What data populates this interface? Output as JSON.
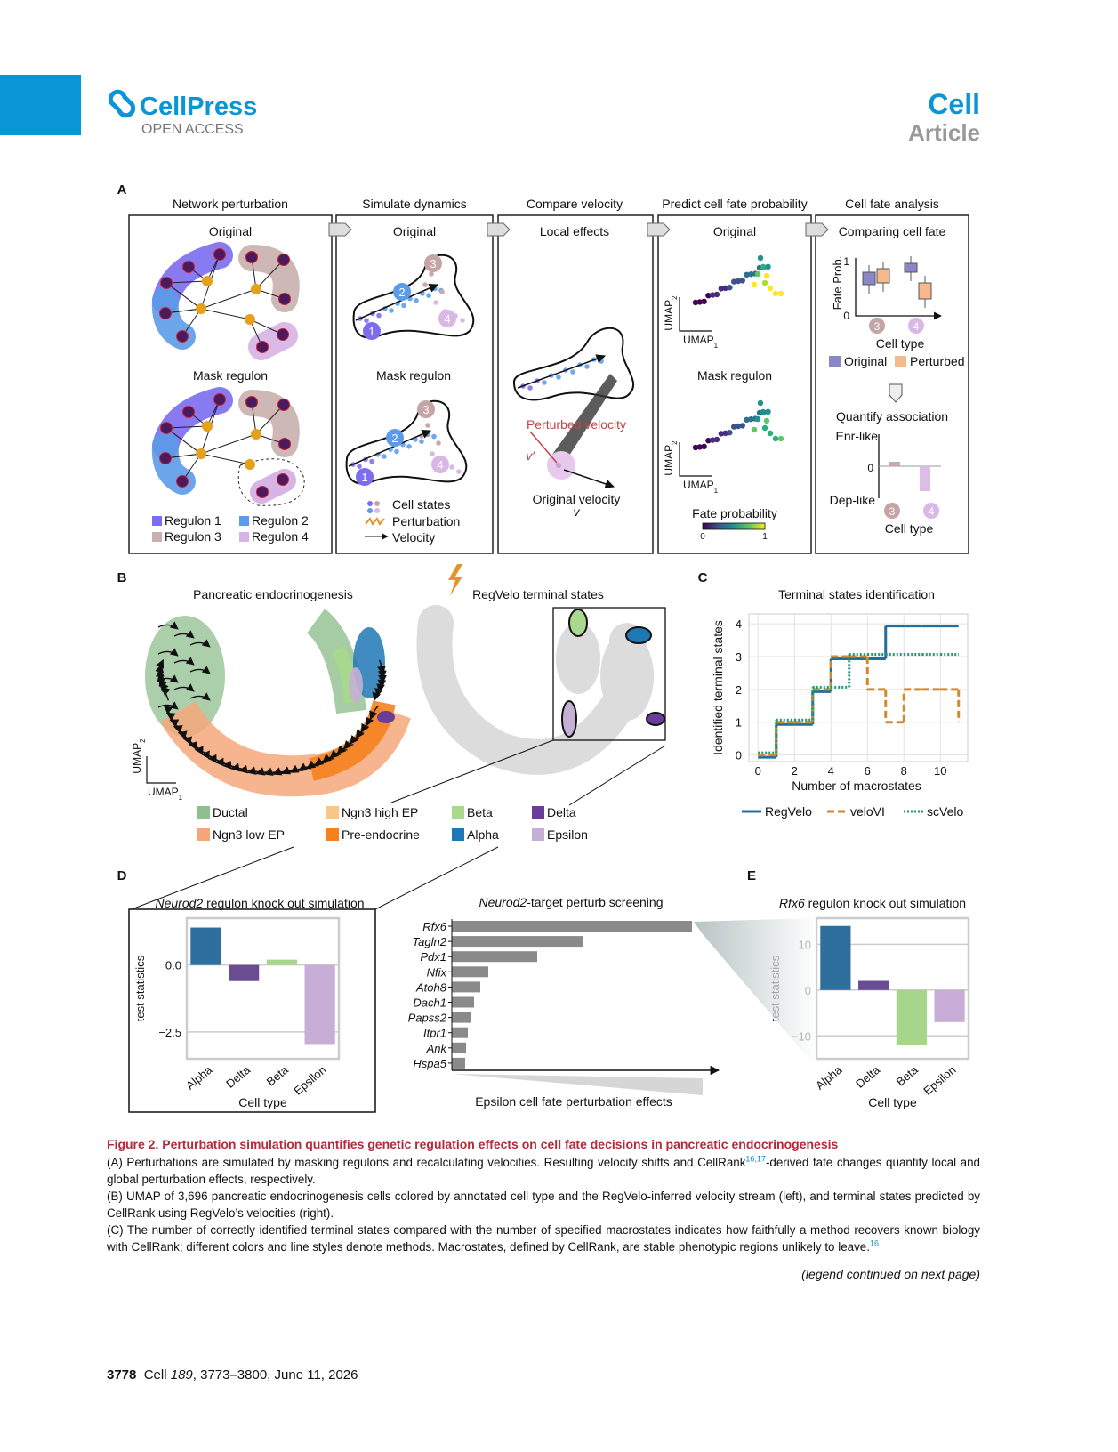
{
  "header": {
    "brand": "CellPress",
    "access": "OPEN ACCESS",
    "journal": "Cell",
    "article_type": "Article"
  },
  "panel_a": {
    "label": "A",
    "network": {
      "title": "Network perturbation",
      "top": "Original",
      "bottom": "Mask regulon",
      "legend": [
        {
          "name": "Regulon 1",
          "color": "#7b6cf0"
        },
        {
          "name": "Regulon 2",
          "color": "#5b9be8"
        },
        {
          "name": "Regulon 3",
          "color": "#c9b0ad"
        },
        {
          "name": "Regulon 4",
          "color": "#d7b3e6"
        }
      ]
    },
    "dynamics": {
      "title": "Simulate dynamics",
      "top": "Original",
      "bottom": "Mask regulon",
      "states": [
        "1",
        "2",
        "3",
        "4"
      ],
      "state_colors": [
        "#7b6cf0",
        "#5b9be8",
        "#c4a4a4",
        "#d9b8e8"
      ],
      "legend": [
        "Cell states",
        "Perturbation",
        "Velocity"
      ]
    },
    "velocity": {
      "title": "Compare velocity",
      "top": "Local effects",
      "perturbed": "Perturbed velocity",
      "perturbed_symbol": "v′",
      "original": "Original velocity",
      "original_symbol": "v"
    },
    "fate": {
      "title": "Predict cell fate probability",
      "top": "Original",
      "bottom": "Mask regulon",
      "umap": "UMAP",
      "x_sub": "1",
      "y_sub": "2",
      "colorbar_title": "Fate probability",
      "colorbar_ticks": [
        0,
        1
      ]
    },
    "analysis": {
      "title": "Cell fate analysis",
      "top": "Comparing cell fate",
      "ylabel": "Fate Prob.",
      "yticks": [
        0,
        1
      ],
      "states": [
        "3",
        "4"
      ],
      "xlabel": "Cell type",
      "legend": [
        {
          "name": "Original",
          "color": "#8a86c8"
        },
        {
          "name": "Perturbed",
          "color": "#f6b98c"
        }
      ],
      "step": "Quantify association",
      "upper": "Enr-like",
      "zero": 0,
      "lower": "Dep-like"
    }
  },
  "panel_b": {
    "label": "B",
    "left_title": "Pancreatic endocrinogenesis",
    "right_title": "RegVelo terminal states",
    "umap": "UMAP",
    "x_sub": "1",
    "y_sub": "2",
    "legend": [
      {
        "name": "Ductal",
        "color": "#8fbf8f"
      },
      {
        "name": "Ngn3 high EP",
        "color": "#f9c78a"
      },
      {
        "name": "Beta",
        "color": "#a9d98c"
      },
      {
        "name": "Delta",
        "color": "#6a3d9a"
      },
      {
        "name": "Ngn3 low EP",
        "color": "#f4a87a"
      },
      {
        "name": "Pre-endocrine",
        "color": "#f5821f"
      },
      {
        "name": "Alpha",
        "color": "#1f77b4"
      },
      {
        "name": "Epsilon",
        "color": "#c5b0d5"
      }
    ]
  },
  "panel_c": {
    "label": "C",
    "chart": {
      "type": "line",
      "title": "Terminal states identification",
      "xlabel": "Number of macrostates",
      "ylabel": "Identified terminal states",
      "x": [
        0,
        1,
        2,
        3,
        4,
        5,
        6,
        7,
        8,
        9,
        10,
        11
      ],
      "series": [
        {
          "name": "RegVelo",
          "color": "#1f6f9f",
          "linestyle": "solid",
          "values": [
            0,
            1,
            1,
            2,
            3,
            3,
            3,
            4,
            4,
            4,
            4,
            4
          ]
        },
        {
          "name": "veloVI",
          "color": "#d08a2a",
          "linestyle": "dashed",
          "values": [
            0,
            1,
            1,
            2,
            3,
            3,
            2,
            1,
            2,
            2,
            2,
            1
          ]
        },
        {
          "name": "scVelo",
          "color": "#1a9a7a",
          "linestyle": "dotted",
          "values": [
            0,
            1,
            1,
            2,
            2,
            3,
            3,
            3,
            3,
            3,
            3,
            3
          ]
        }
      ],
      "xlim": [
        -0.5,
        11.5
      ],
      "ylim": [
        -0.2,
        4.3
      ],
      "xticks": [
        0,
        2,
        4,
        6,
        8,
        10
      ],
      "yticks": [
        0,
        1,
        2,
        3,
        4
      ],
      "grid": true,
      "legend": "bottom"
    }
  },
  "panel_d": {
    "label": "D",
    "knockout": {
      "type": "bar",
      "title_gene": "Neurod2",
      "title": " regulon knock out simulation",
      "categories": [
        "Alpha",
        "Delta",
        "Beta",
        "Epsilon"
      ],
      "values": [
        1.4,
        -0.6,
        0.2,
        -2.95
      ],
      "colors": [
        "#2e6f9e",
        "#6a4c93",
        "#a8d58c",
        "#c8aed6"
      ],
      "ylim": [
        -3.5,
        1.75
      ],
      "yticks": [
        {
          "value": 0,
          "label": "0.0"
        },
        {
          "value": -2.5,
          "label": "−2.5"
        }
      ],
      "ylabel": "test statistics",
      "xlabel": "Cell type"
    },
    "screening": {
      "type": "barh",
      "title_gene": "Neurod2",
      "title": "-target perturb screening",
      "categories": [
        "Rfx6",
        "Tagln2",
        "Pdx1",
        "Nfix",
        "Atoh8",
        "Dach1",
        "Papss2",
        "Itpr1",
        "Ank",
        "Hspa5"
      ],
      "values": [
        270,
        147,
        96,
        41,
        32,
        25,
        22,
        18,
        16,
        15
      ],
      "color": "#8a8a8a",
      "xlim": [
        0,
        300
      ],
      "xlabel": "Epsilon cell fate perturbation effects"
    }
  },
  "panel_e": {
    "label": "E",
    "knockout": {
      "type": "bar",
      "title_gene": "Rfx6",
      "title": " regulon knock out simulation",
      "categories": [
        "Alpha",
        "Delta",
        "Beta",
        "Epsilon"
      ],
      "values": [
        14,
        2,
        -12,
        -7
      ],
      "colors": [
        "#2e6f9e",
        "#6a4c93",
        "#a8d58c",
        "#c8aed6"
      ],
      "ylim": [
        -15,
        15.7
      ],
      "yticks": [
        10,
        0,
        {
          "value": -10,
          "label": "−10"
        }
      ],
      "ylabel": "test statistics",
      "xlabel": "Cell type"
    }
  },
  "caption": {
    "title": "Figure 2. Perturbation simulation quantifies genetic regulation effects on cell fate decisions in pancreatic endocrinogenesis",
    "paragraphs": [
      {
        "text": "(A) Perturbations are simulated by masking regulons and recalculating velocities. Resulting velocity shifts and CellRank",
        "refs": "16,17",
        "tail": "-derived fate changes quantify local and global perturbation effects, respectively."
      },
      {
        "text": "(B) UMAP of 3,696 pancreatic endocrinogenesis cells colored by annotated cell type and the RegVelo-inferred velocity stream (left), and terminal states predicted by CellRank using RegVelo’s velocities (right)."
      },
      {
        "text": "(C) The number of correctly identified terminal states compared with the number of specified macrostates indicates how faithfully a method recovers known biology with CellRank; different colors and line styles denote methods. Macrostates, defined by CellRank, are stable phenotypic regions unlikely to leave.",
        "refs": "16"
      }
    ],
    "continued": "(legend continued on next page)"
  },
  "footer": {
    "page": "3778",
    "journal": "Cell",
    "volume": "189",
    "rest": ", 3773–3800, June 11, 2026"
  }
}
